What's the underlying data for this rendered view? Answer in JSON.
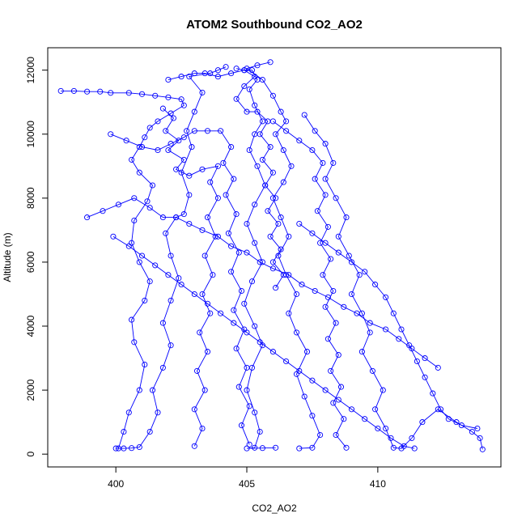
{
  "chart_data": {
    "type": "scatter",
    "title": "ATOM2 Southbound CO2_AO2",
    "xlabel": "CO2_AO2",
    "ylabel": "Altitude (m)",
    "xlim": [
      397.4,
      414.7
    ],
    "ylim": [
      -400,
      12700
    ],
    "x_ticks": [
      400,
      405,
      410
    ],
    "y_ticks": [
      0,
      2000,
      4000,
      6000,
      8000,
      10000,
      12000
    ],
    "grid": false,
    "legend": "none",
    "series_color": "#0000ff",
    "marker": "open-circle",
    "series": [
      {
        "points": [
          [
            397.9,
            11350
          ],
          [
            398.4,
            11350
          ],
          [
            398.9,
            11330
          ],
          [
            399.4,
            11330
          ],
          [
            399.8,
            11290
          ],
          [
            400.5,
            11290
          ],
          [
            401.0,
            11250
          ],
          [
            401.5,
            11200
          ],
          [
            402.0,
            11150
          ],
          [
            402.5,
            11090
          ],
          [
            402.6,
            10900
          ],
          [
            402.1,
            10650
          ],
          [
            401.6,
            10400
          ],
          [
            401.3,
            10200
          ],
          [
            401.1,
            9900
          ],
          [
            400.9,
            9600
          ],
          [
            400.6,
            9200
          ],
          [
            400.9,
            8800
          ],
          [
            401.4,
            8400
          ],
          [
            401.2,
            7900
          ],
          [
            400.7,
            7300
          ],
          [
            400.6,
            6600
          ],
          [
            400.9,
            6000
          ],
          [
            401.3,
            5400
          ],
          [
            401.1,
            4800
          ],
          [
            400.6,
            4200
          ],
          [
            400.7,
            3500
          ],
          [
            401.1,
            2800
          ],
          [
            400.9,
            2000
          ],
          [
            400.5,
            1300
          ],
          [
            400.3,
            700
          ],
          [
            400.1,
            180
          ]
        ]
      },
      {
        "points": [
          [
            400.0,
            180
          ],
          [
            400.3,
            180
          ],
          [
            400.6,
            190
          ],
          [
            400.9,
            220
          ],
          [
            401.3,
            700
          ],
          [
            401.6,
            1300
          ],
          [
            401.4,
            2000
          ],
          [
            401.8,
            2700
          ],
          [
            402.1,
            3400
          ],
          [
            401.8,
            4100
          ],
          [
            402.1,
            4800
          ],
          [
            402.4,
            5500
          ],
          [
            402.1,
            6200
          ],
          [
            401.9,
            6900
          ],
          [
            402.3,
            7400
          ],
          [
            402.6,
            7500
          ],
          [
            402.8,
            8100
          ],
          [
            402.5,
            8800
          ],
          [
            402.9,
            9600
          ],
          [
            402.7,
            10100
          ],
          [
            403.0,
            10700
          ],
          [
            403.3,
            11300
          ],
          [
            402.8,
            11800
          ],
          [
            403.6,
            11900
          ],
          [
            403.9,
            12000
          ],
          [
            404.2,
            12100
          ]
        ]
      },
      {
        "points": [
          [
            404.6,
            12050
          ],
          [
            404.9,
            12000
          ],
          [
            405.2,
            12000
          ],
          [
            405.4,
            11700
          ],
          [
            405.1,
            11400
          ],
          [
            405.3,
            10900
          ],
          [
            405.6,
            10400
          ],
          [
            405.3,
            10000
          ],
          [
            405.1,
            9500
          ],
          [
            405.4,
            9000
          ],
          [
            405.7,
            8400
          ],
          [
            405.3,
            7800
          ],
          [
            405.0,
            7200
          ],
          [
            405.3,
            6600
          ],
          [
            405.6,
            6000
          ],
          [
            405.2,
            5400
          ],
          [
            404.9,
            4700
          ],
          [
            405.3,
            4000
          ],
          [
            405.6,
            3400
          ],
          [
            405.2,
            2700
          ],
          [
            405.0,
            2000
          ],
          [
            405.3,
            1300
          ],
          [
            405.5,
            700
          ],
          [
            405.3,
            200
          ],
          [
            405.0,
            180
          ],
          [
            405.6,
            190
          ],
          [
            406.1,
            200
          ]
        ]
      },
      {
        "points": [
          [
            405.9,
            12250
          ],
          [
            405.4,
            12150
          ],
          [
            405.0,
            12050
          ],
          [
            405.6,
            11700
          ],
          [
            406.0,
            11200
          ],
          [
            406.3,
            10700
          ],
          [
            406.5,
            10400
          ],
          [
            406.1,
            10000
          ],
          [
            406.4,
            9500
          ],
          [
            406.7,
            9000
          ],
          [
            406.4,
            8500
          ],
          [
            406.0,
            8000
          ],
          [
            406.3,
            7400
          ],
          [
            406.6,
            6800
          ],
          [
            406.2,
            6200
          ],
          [
            406.5,
            5600
          ],
          [
            406.9,
            5000
          ],
          [
            406.6,
            4400
          ],
          [
            406.9,
            3800
          ],
          [
            407.3,
            3200
          ],
          [
            406.9,
            2500
          ],
          [
            407.2,
            1800
          ],
          [
            407.5,
            1200
          ],
          [
            407.8,
            600
          ],
          [
            407.5,
            200
          ],
          [
            407.0,
            180
          ]
        ]
      },
      {
        "points": [
          [
            407.2,
            10600
          ],
          [
            407.6,
            10100
          ],
          [
            408.0,
            9700
          ],
          [
            408.3,
            9100
          ],
          [
            408.0,
            8600
          ],
          [
            408.4,
            8000
          ],
          [
            408.8,
            7400
          ],
          [
            408.5,
            6800
          ],
          [
            408.9,
            6200
          ],
          [
            409.3,
            5600
          ],
          [
            409.0,
            5000
          ],
          [
            409.4,
            4400
          ],
          [
            409.7,
            3800
          ],
          [
            409.4,
            3200
          ],
          [
            409.8,
            2600
          ],
          [
            410.2,
            2000
          ],
          [
            409.9,
            1400
          ],
          [
            410.3,
            800
          ],
          [
            410.6,
            200
          ],
          [
            410.9,
            180
          ],
          [
            411.3,
            500
          ],
          [
            411.7,
            1000
          ],
          [
            412.3,
            1400
          ],
          [
            413.0,
            1000
          ],
          [
            413.6,
            700
          ],
          [
            413.9,
            500
          ],
          [
            414.0,
            150
          ]
        ]
      },
      {
        "points": [
          [
            401.8,
            10800
          ],
          [
            402.2,
            10500
          ],
          [
            401.9,
            10100
          ],
          [
            402.4,
            9800
          ],
          [
            402.0,
            9500
          ],
          [
            402.6,
            9200
          ],
          [
            402.3,
            8900
          ],
          [
            402.8,
            8700
          ],
          [
            403.3,
            8900
          ],
          [
            403.9,
            9000
          ],
          [
            403.6,
            8500
          ],
          [
            403.9,
            8000
          ],
          [
            403.5,
            7400
          ],
          [
            403.8,
            6800
          ],
          [
            403.4,
            6200
          ],
          [
            403.7,
            5600
          ],
          [
            403.3,
            5000
          ],
          [
            403.6,
            4400
          ],
          [
            403.2,
            3800
          ],
          [
            403.5,
            3200
          ],
          [
            403.1,
            2600
          ],
          [
            403.4,
            2000
          ],
          [
            403.0,
            1400
          ],
          [
            403.3,
            800
          ],
          [
            403.0,
            250
          ]
        ]
      },
      {
        "points": [
          [
            399.8,
            10000
          ],
          [
            400.4,
            9800
          ],
          [
            401.0,
            9600
          ],
          [
            401.6,
            9500
          ],
          [
            402.1,
            9700
          ],
          [
            402.6,
            9900
          ],
          [
            403.0,
            10100
          ],
          [
            403.5,
            10100
          ],
          [
            404.0,
            10100
          ],
          [
            404.4,
            9600
          ],
          [
            404.1,
            9100
          ],
          [
            404.5,
            8600
          ],
          [
            404.2,
            8100
          ],
          [
            404.6,
            7500
          ],
          [
            404.3,
            6900
          ],
          [
            404.7,
            6300
          ],
          [
            404.4,
            5700
          ],
          [
            404.8,
            5100
          ],
          [
            404.5,
            4500
          ],
          [
            404.9,
            3900
          ],
          [
            404.6,
            3300
          ],
          [
            405.0,
            2700
          ],
          [
            404.7,
            2100
          ],
          [
            405.1,
            1500
          ],
          [
            404.8,
            900
          ],
          [
            405.1,
            300
          ]
        ]
      },
      {
        "points": [
          [
            398.9,
            7400
          ],
          [
            399.5,
            7600
          ],
          [
            400.1,
            7800
          ],
          [
            400.7,
            8000
          ],
          [
            401.3,
            7700
          ],
          [
            401.8,
            7400
          ],
          [
            402.3,
            7400
          ],
          [
            402.8,
            7200
          ],
          [
            403.3,
            7000
          ],
          [
            403.9,
            6800
          ],
          [
            404.4,
            6500
          ],
          [
            405.0,
            6300
          ],
          [
            405.5,
            6000
          ],
          [
            406.0,
            5800
          ],
          [
            406.6,
            5600
          ],
          [
            407.1,
            5300
          ],
          [
            407.6,
            5100
          ],
          [
            408.1,
            4900
          ],
          [
            408.7,
            4600
          ],
          [
            409.2,
            4400
          ],
          [
            409.7,
            4100
          ],
          [
            410.3,
            3900
          ],
          [
            410.8,
            3600
          ],
          [
            411.3,
            3300
          ],
          [
            411.8,
            3000
          ],
          [
            412.3,
            2700
          ]
        ]
      },
      {
        "points": [
          [
            399.9,
            6800
          ],
          [
            400.5,
            6500
          ],
          [
            401.0,
            6200
          ],
          [
            401.5,
            5900
          ],
          [
            402.0,
            5600
          ],
          [
            402.5,
            5300
          ],
          [
            403.0,
            5000
          ],
          [
            403.5,
            4700
          ],
          [
            404.0,
            4400
          ],
          [
            404.5,
            4100
          ],
          [
            405.0,
            3800
          ],
          [
            405.5,
            3500
          ],
          [
            406.0,
            3200
          ],
          [
            406.5,
            2900
          ],
          [
            407.0,
            2600
          ],
          [
            407.5,
            2300
          ],
          [
            408.0,
            2000
          ],
          [
            408.5,
            1700
          ],
          [
            409.0,
            1400
          ],
          [
            409.5,
            1100
          ],
          [
            410.0,
            800
          ],
          [
            410.5,
            500
          ],
          [
            411.0,
            250
          ],
          [
            411.4,
            180
          ]
        ]
      },
      {
        "points": [
          [
            406.0,
            10400
          ],
          [
            406.5,
            10100
          ],
          [
            407.0,
            9800
          ],
          [
            407.5,
            9500
          ],
          [
            407.9,
            9100
          ],
          [
            407.6,
            8600
          ],
          [
            408.0,
            8100
          ],
          [
            407.7,
            7600
          ],
          [
            408.1,
            7100
          ],
          [
            407.8,
            6600
          ],
          [
            408.2,
            6100
          ],
          [
            407.9,
            5600
          ],
          [
            408.3,
            5100
          ],
          [
            408.0,
            4600
          ],
          [
            408.4,
            4100
          ],
          [
            408.1,
            3600
          ],
          [
            408.5,
            3100
          ],
          [
            408.2,
            2600
          ],
          [
            408.6,
            2100
          ],
          [
            408.3,
            1600
          ],
          [
            408.7,
            1100
          ],
          [
            408.4,
            600
          ],
          [
            408.8,
            200
          ]
        ]
      },
      {
        "points": [
          [
            402.0,
            11700
          ],
          [
            402.5,
            11800
          ],
          [
            403.0,
            11900
          ],
          [
            403.4,
            11900
          ],
          [
            403.9,
            11800
          ],
          [
            404.4,
            11900
          ],
          [
            404.9,
            12000
          ],
          [
            405.3,
            11800
          ],
          [
            404.9,
            11500
          ],
          [
            404.6,
            11100
          ],
          [
            405.0,
            10700
          ],
          [
            405.4,
            10700
          ],
          [
            405.8,
            10400
          ],
          [
            405.5,
            10000
          ],
          [
            405.9,
            9600
          ],
          [
            405.6,
            9200
          ],
          [
            406.0,
            8800
          ],
          [
            405.7,
            8400
          ],
          [
            406.1,
            8000
          ],
          [
            405.8,
            7600
          ],
          [
            406.2,
            7200
          ],
          [
            405.9,
            6800
          ],
          [
            406.3,
            6400
          ],
          [
            406.0,
            6000
          ],
          [
            406.4,
            5600
          ],
          [
            406.1,
            5200
          ]
        ]
      },
      {
        "points": [
          [
            407.0,
            7200
          ],
          [
            407.5,
            6900
          ],
          [
            408.0,
            6600
          ],
          [
            408.5,
            6300
          ],
          [
            409.0,
            6000
          ],
          [
            409.5,
            5700
          ],
          [
            409.9,
            5300
          ],
          [
            410.3,
            4900
          ],
          [
            410.6,
            4400
          ],
          [
            410.9,
            3900
          ],
          [
            411.2,
            3400
          ],
          [
            411.5,
            2900
          ],
          [
            411.8,
            2400
          ],
          [
            412.1,
            1900
          ],
          [
            412.4,
            1400
          ],
          [
            412.7,
            1100
          ],
          [
            413.2,
            900
          ],
          [
            413.8,
            800
          ]
        ]
      }
    ]
  }
}
